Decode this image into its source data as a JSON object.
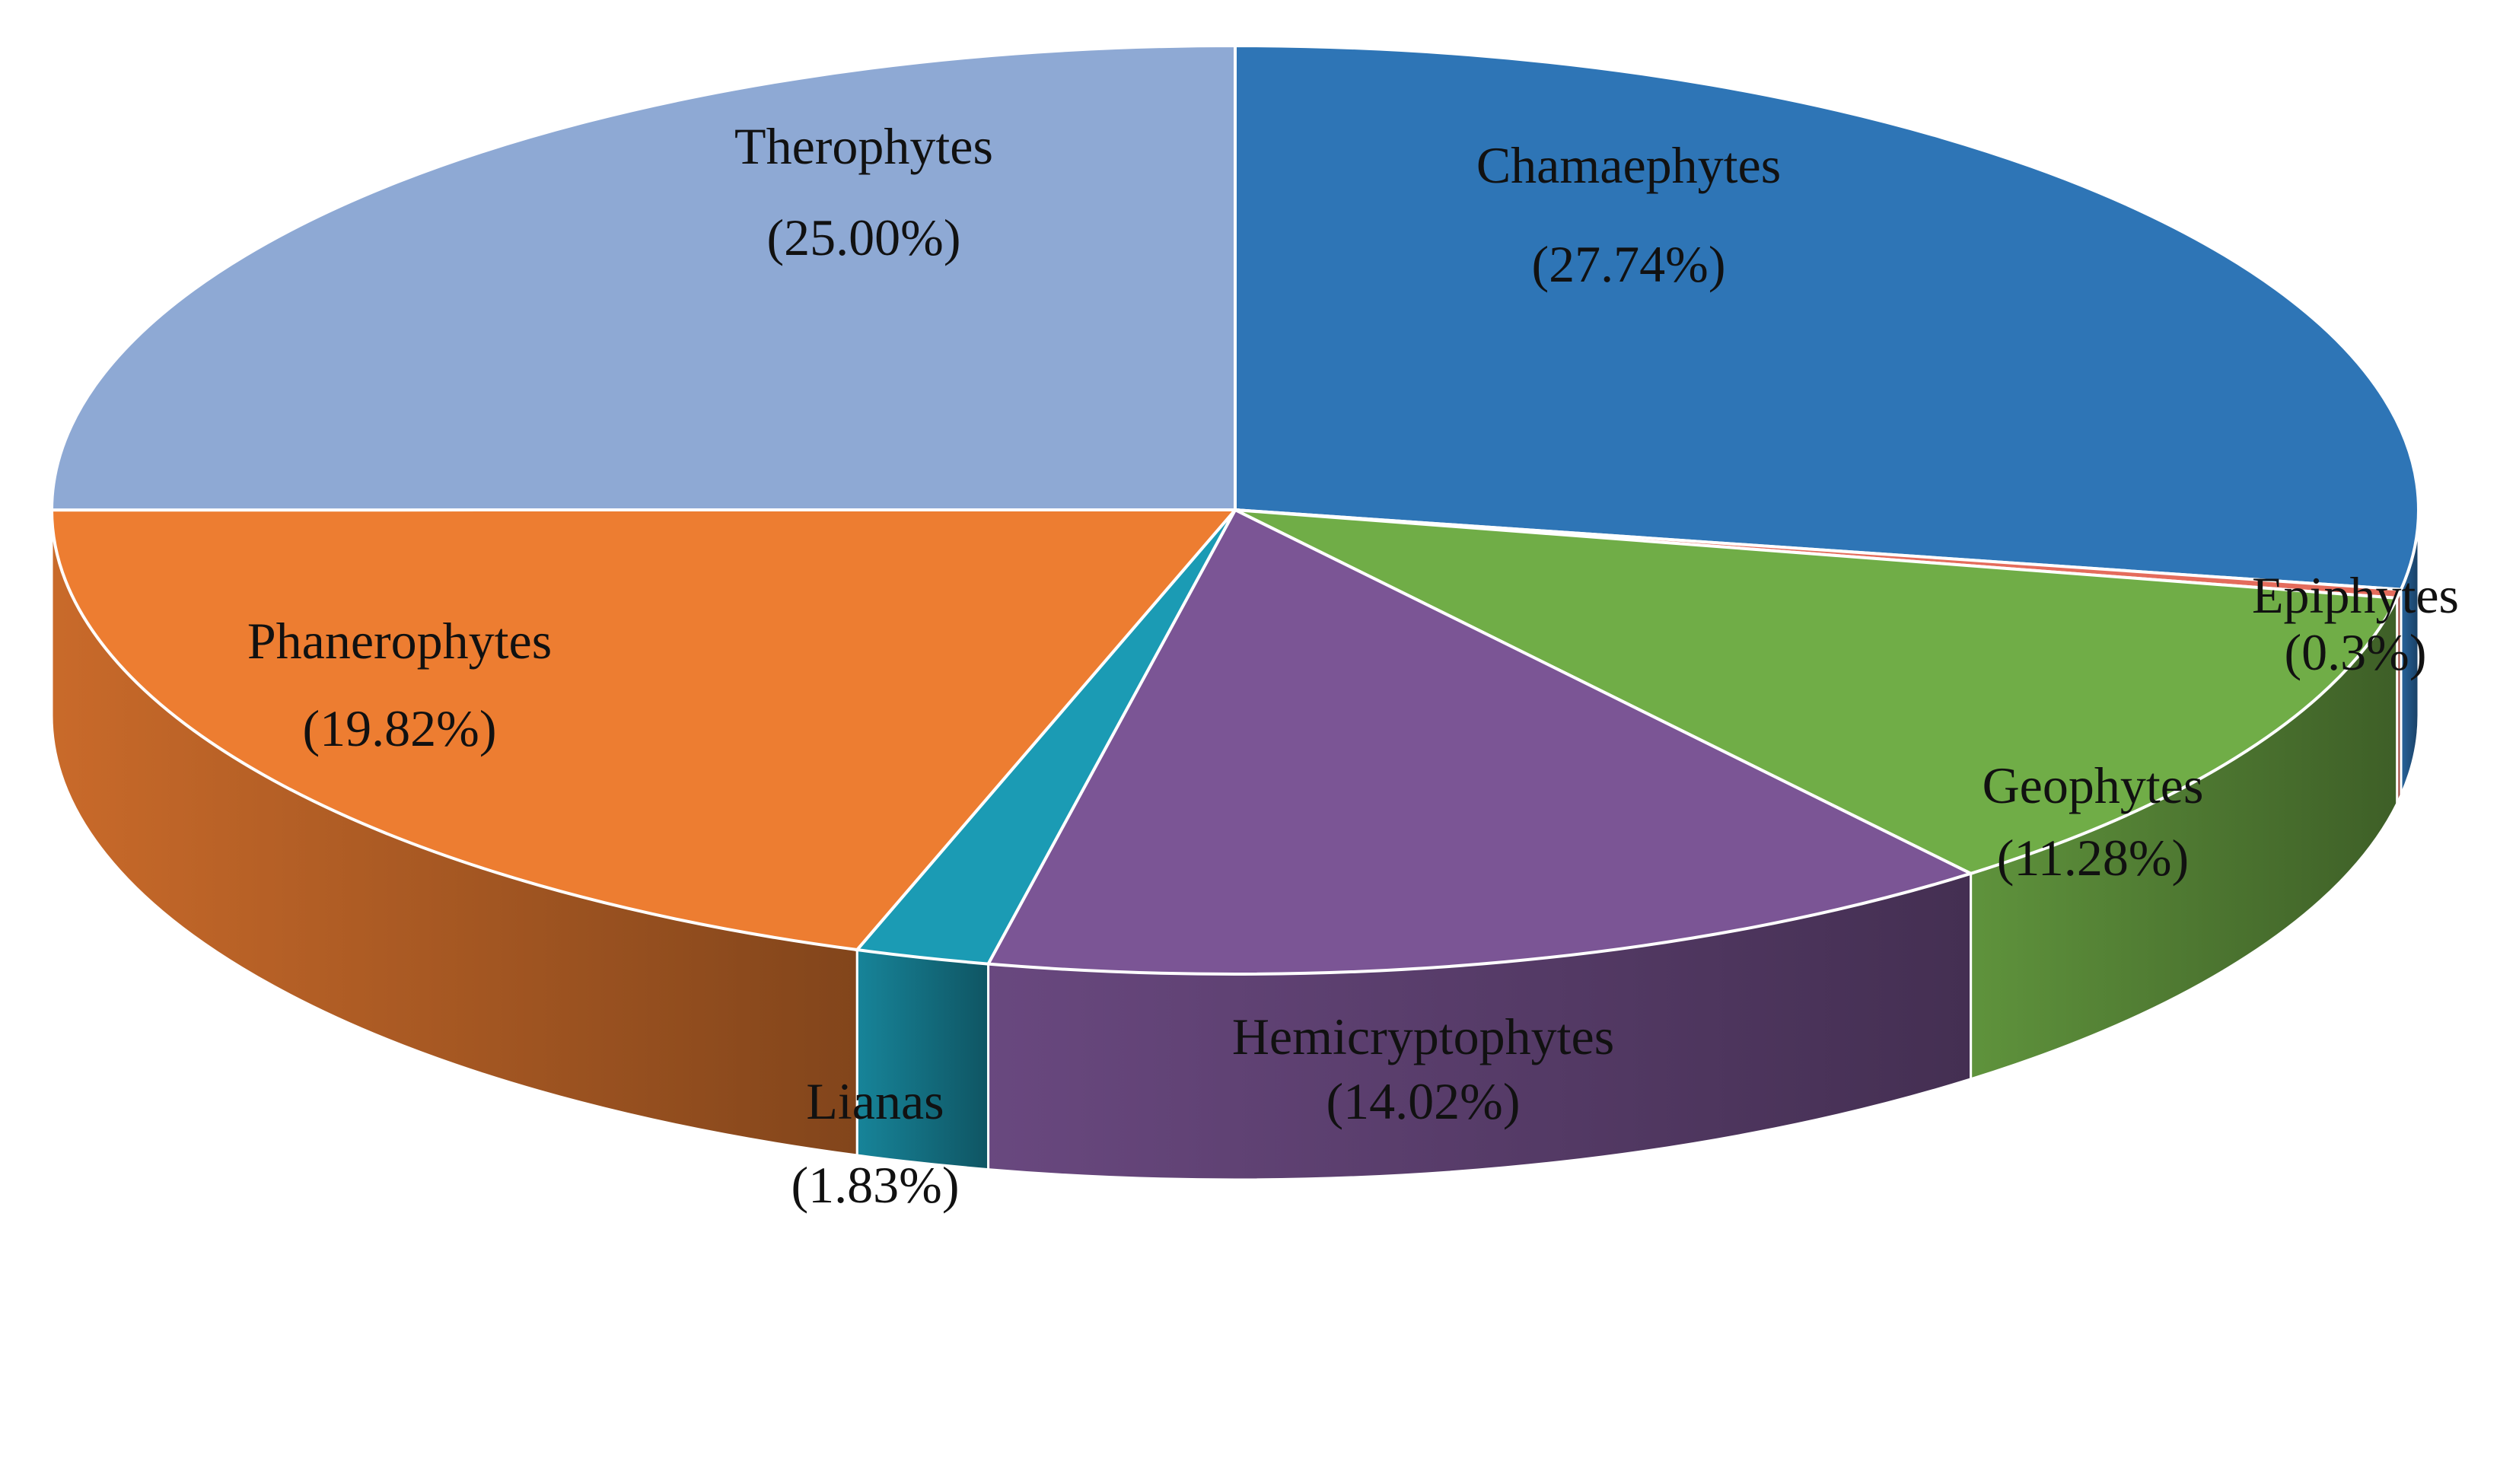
{
  "chart_data": {
    "type": "pie",
    "style": "3d",
    "title": "",
    "slices": [
      {
        "name": "Chamaephytes",
        "value": 27.74,
        "label": "(27.74%)",
        "color": "#2E75B6"
      },
      {
        "name": "Epiphytes",
        "value": 0.3,
        "label": "(0.3%)",
        "color": "#E46C5C"
      },
      {
        "name": "Geophytes",
        "value": 11.28,
        "label": "(11.28%)",
        "color": "#70AD47"
      },
      {
        "name": "Hemicryptophytes",
        "value": 14.02,
        "label": "(14.02%)",
        "color": "#7B5595"
      },
      {
        "name": "Lianas",
        "value": 1.83,
        "label": "(1.83%)",
        "color": "#1B9BB4"
      },
      {
        "name": "Phanerophytes",
        "value": 19.82,
        "label": "(19.82%)",
        "color": "#ED7D31"
      },
      {
        "name": "Therophytes",
        "value": 25.0,
        "label": "(25.00%)",
        "color": "#8EA9D4"
      }
    ]
  }
}
